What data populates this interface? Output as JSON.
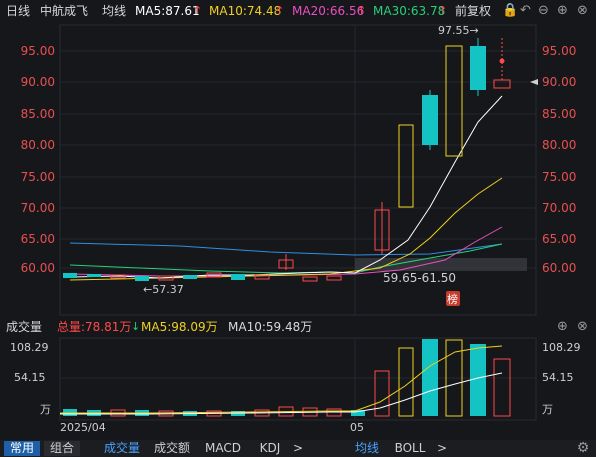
{
  "header": {
    "period": "日线",
    "stock_name": "中航成飞",
    "ma_type": "均线",
    "ma5": "MA5:87.61",
    "ma10": "MA10:74.48",
    "ma20": "MA20:66.56",
    "ma30": "MA30:63.78",
    "adjust": "前复权"
  },
  "price_axis": {
    "left_ticks": [
      "95.00",
      "90.00",
      "85.00",
      "80.00",
      "75.00",
      "70.00",
      "65.00",
      "60.00"
    ],
    "right_ticks": [
      "95.00",
      "90.00",
      "85.00",
      "80.00",
      "75.00",
      "70.00",
      "65.00",
      "60.00"
    ]
  },
  "annotations": {
    "high_label": "97.55→",
    "low_label": "←57.37",
    "range_label": "59.65-61.50",
    "rank_badge": "榜"
  },
  "volume_header": {
    "title": "成交量",
    "total": "总量:78.81万",
    "ma5": "MA5:98.09万",
    "ma10": "MA10:59.48万"
  },
  "volume_axis": {
    "top": "108.29",
    "mid": "54.15",
    "unit": "万"
  },
  "time_axis": {
    "left_label": "2025/04",
    "mid_label": "05"
  },
  "bottom_tabs": {
    "common": "常用",
    "combo": "组合",
    "volume": "成交量",
    "amount": "成交额",
    "macd": "MACD",
    "kdj": "KDJ",
    "more1": ">",
    "ma": "均线",
    "boll": "BOLL",
    "more2": ">"
  },
  "colors": {
    "up": "#ff4a4a",
    "down": "#14c4c4",
    "ma5": "#ffffff",
    "ma10": "#f0d020",
    "ma20": "#e94fc0",
    "ma30": "#27d07a",
    "yellow_up": "#f0d020"
  }
}
